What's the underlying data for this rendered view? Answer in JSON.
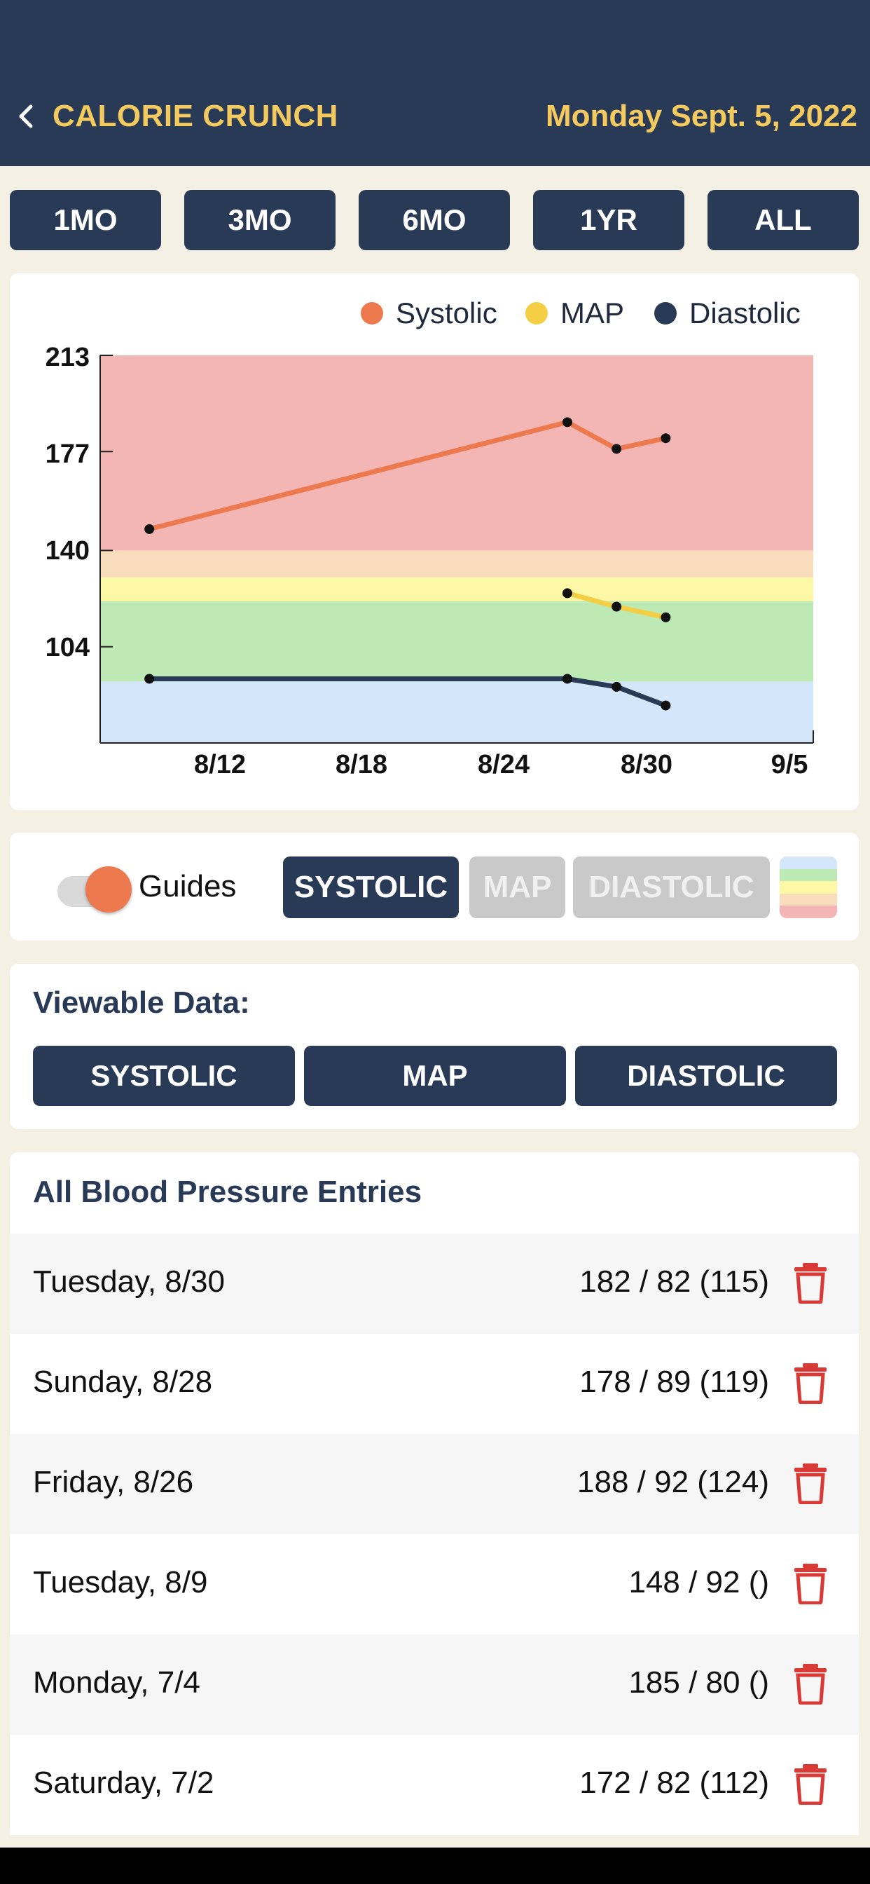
{
  "header": {
    "back_icon": "chevron-left-icon",
    "app_name": "CALORIE CRUNCH",
    "date": "Monday Sept. 5, 2022",
    "accent_color": "#F4C95D",
    "bg_color": "#293A56"
  },
  "range_tabs": [
    {
      "label": "1MO"
    },
    {
      "label": "3MO"
    },
    {
      "label": "6MO"
    },
    {
      "label": "1YR"
    },
    {
      "label": "ALL"
    }
  ],
  "chart_data": {
    "type": "line",
    "legend": [
      {
        "name": "Systolic",
        "color": "#EC7A4E"
      },
      {
        "name": "MAP",
        "color": "#F4CF45"
      },
      {
        "name": "Diastolic",
        "color": "#293A56"
      }
    ],
    "y_ticks": [
      "213",
      "177",
      "140",
      "104"
    ],
    "x_ticks": [
      "8/12",
      "8/18",
      "8/24",
      "8/30",
      "9/5"
    ],
    "ylim": [
      68,
      213
    ],
    "xlim": [
      "8/7",
      "9/5"
    ],
    "guide_bands": [
      {
        "from": 68,
        "to": 91,
        "color": "#D3E6FA"
      },
      {
        "from": 91,
        "to": 121,
        "color": "#BCE9B4"
      },
      {
        "from": 121,
        "to": 130,
        "color": "#FCF8A6"
      },
      {
        "from": 130,
        "to": 140,
        "color": "#F9DCBB"
      },
      {
        "from": 140,
        "to": 213,
        "color": "#F4B6B5"
      }
    ],
    "series": [
      {
        "name": "Systolic",
        "color": "#EC7A4E",
        "x": [
          "8/9",
          "8/26",
          "8/28",
          "8/30"
        ],
        "values": [
          148,
          188,
          178,
          182
        ]
      },
      {
        "name": "MAP",
        "color": "#F4CF45",
        "x": [
          "8/26",
          "8/28",
          "8/30"
        ],
        "values": [
          124,
          119,
          115
        ]
      },
      {
        "name": "Diastolic",
        "color": "#293A56",
        "x": [
          "8/9",
          "8/26",
          "8/28",
          "8/30"
        ],
        "values": [
          92,
          92,
          89,
          82
        ]
      }
    ],
    "grid": false,
    "legend_position": "top-right"
  },
  "controls": {
    "guides_label": "Guides",
    "guides_on": true,
    "toggle_color": "#EC7A4E",
    "filters": [
      {
        "label": "SYSTOLIC",
        "active": true
      },
      {
        "label": "MAP",
        "active": false
      },
      {
        "label": "DIASTOLIC",
        "active": false
      }
    ],
    "swatch_icon": "color-guide-icon"
  },
  "viewable": {
    "title": "Viewable Data:",
    "buttons": [
      {
        "label": "SYSTOLIC"
      },
      {
        "label": "MAP"
      },
      {
        "label": "DIASTOLIC"
      }
    ]
  },
  "entries": {
    "title": "All Blood Pressure Entries",
    "rows": [
      {
        "day": "Tuesday, 8/30",
        "value": "182 / 82 (115)"
      },
      {
        "day": "Sunday, 8/28",
        "value": "178 / 89 (119)"
      },
      {
        "day": "Friday, 8/26",
        "value": "188 / 92 (124)"
      },
      {
        "day": "Tuesday, 8/9",
        "value": "148 / 92 ()"
      },
      {
        "day": "Monday, 7/4",
        "value": "185 / 80 ()"
      },
      {
        "day": "Saturday, 7/2",
        "value": "172 / 82 (112)"
      }
    ],
    "trash_color": "#D93A35"
  }
}
